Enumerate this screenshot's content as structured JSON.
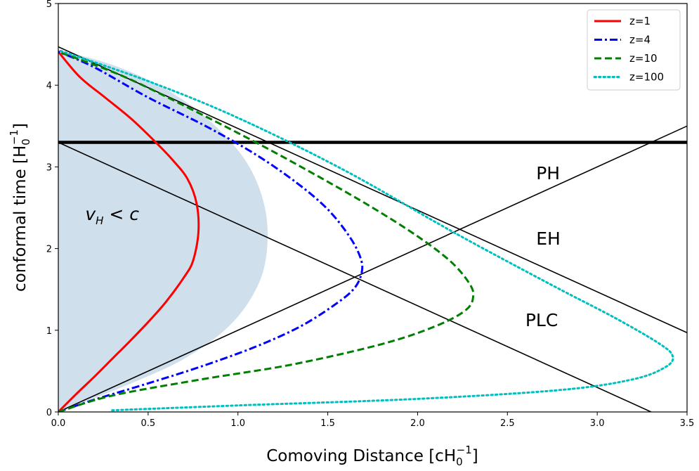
{
  "chart_data": {
    "type": "line",
    "xlabel_main": "Comoving Distance [cH",
    "xlabel_sub": "0",
    "xlabel_sup": "−1",
    "xlabel_end": "]",
    "ylabel_main": "conformal time [H",
    "ylabel_sub": "0",
    "ylabel_sup": "−1",
    "ylabel_end": "]",
    "xlim": [
      0,
      3.5
    ],
    "ylim": [
      0,
      5
    ],
    "x_ticks": [
      0.0,
      0.5,
      1.0,
      1.5,
      2.0,
      2.5,
      3.0,
      3.5
    ],
    "x_tick_labels": [
      "0.0",
      "0.5",
      "1.0",
      "1.5",
      "2.0",
      "2.5",
      "3.0",
      "3.5"
    ],
    "y_ticks": [
      0,
      1,
      2,
      3,
      4,
      5
    ],
    "y_tick_labels": [
      "0",
      "1",
      "2",
      "3",
      "4",
      "5"
    ],
    "grid": false,
    "legend_position": "top-right",
    "series": [
      {
        "name": "z=1",
        "color": "#ff0000",
        "style": "solid",
        "x": [
          0.0,
          0.1,
          0.2,
          0.3,
          0.4,
          0.5,
          0.6,
          0.7,
          0.75,
          0.78,
          0.77,
          0.72,
          0.63,
          0.52,
          0.4,
          0.26,
          0.12,
          0.0
        ],
        "y": [
          0.0,
          0.22,
          0.43,
          0.65,
          0.87,
          1.1,
          1.35,
          1.65,
          1.85,
          2.2,
          2.55,
          2.85,
          3.1,
          3.35,
          3.6,
          3.85,
          4.1,
          4.41
        ]
      },
      {
        "name": "z=4",
        "color": "#0000ff",
        "style": "dashdot",
        "x": [
          0.0,
          0.2,
          0.5,
          0.8,
          1.1,
          1.35,
          1.55,
          1.65,
          1.69,
          1.68,
          1.62,
          1.5,
          1.33,
          1.1,
          0.82,
          0.5,
          0.2,
          0.0
        ],
        "y": [
          0.0,
          0.15,
          0.35,
          0.56,
          0.8,
          1.05,
          1.33,
          1.52,
          1.72,
          1.9,
          2.15,
          2.48,
          2.8,
          3.15,
          3.5,
          3.85,
          4.22,
          4.41
        ]
      },
      {
        "name": "z=10",
        "color": "#008000",
        "style": "dashed",
        "x": [
          0.0,
          0.3,
          0.8,
          1.3,
          1.8,
          2.1,
          2.27,
          2.31,
          2.28,
          2.18,
          2.0,
          1.75,
          1.45,
          1.1,
          0.7,
          0.35,
          0.0
        ],
        "y": [
          0.0,
          0.2,
          0.4,
          0.58,
          0.83,
          1.05,
          1.25,
          1.43,
          1.6,
          1.85,
          2.15,
          2.5,
          2.88,
          3.3,
          3.75,
          4.12,
          4.41
        ]
      },
      {
        "name": "z=100",
        "color": "#00bfbf",
        "style": "dotted",
        "x": [
          0.3,
          1.0,
          2.0,
          2.8,
          3.2,
          3.38,
          3.42,
          3.35,
          3.1,
          2.75,
          2.2,
          1.6,
          1.0,
          0.5,
          0.0
        ],
        "y": [
          0.02,
          0.08,
          0.16,
          0.27,
          0.4,
          0.55,
          0.68,
          0.83,
          1.15,
          1.55,
          2.2,
          2.95,
          3.6,
          4.05,
          4.43
        ]
      }
    ],
    "reference_lines": [
      {
        "id": "ph-line",
        "x": [
          0.0,
          3.5
        ],
        "y": [
          0.0,
          3.5
        ]
      },
      {
        "id": "eh-line",
        "x": [
          0.0,
          3.5
        ],
        "y": [
          4.47,
          0.97
        ]
      },
      {
        "id": "plc-line",
        "x": [
          0.0,
          3.3
        ],
        "y": [
          3.3,
          0.0
        ]
      },
      {
        "id": "today-line",
        "x": [
          0.0,
          3.5
        ],
        "y": [
          3.3,
          3.3
        ],
        "thick": true
      }
    ],
    "shaded_region": {
      "color": "#cfdfec",
      "label": "v",
      "label_sub": "H",
      "label_rest": " < c",
      "x": [
        0.0,
        0.35,
        0.7,
        0.95,
        1.1,
        1.16,
        1.15,
        1.05,
        0.85,
        0.6,
        0.3,
        0.0
      ],
      "y": [
        0.0,
        0.3,
        0.65,
        1.05,
        1.5,
        1.95,
        2.5,
        3.05,
        3.55,
        3.95,
        4.25,
        4.43
      ]
    },
    "annotations": [
      {
        "text": "PH",
        "x": 2.66,
        "y": 2.85
      },
      {
        "text": "EH",
        "x": 2.66,
        "y": 2.05
      },
      {
        "text": "PLC",
        "x": 2.6,
        "y": 1.05
      }
    ]
  }
}
